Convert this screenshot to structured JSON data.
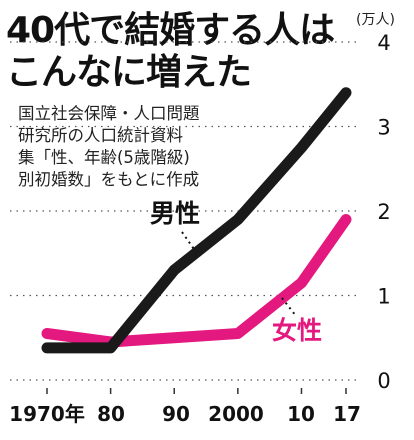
{
  "chart_data": {
    "type": "line",
    "title_lines": [
      "40代で結婚する人は",
      "こんなに増えた"
    ],
    "source_lines": [
      "国立社会保障・人口問題",
      "研究所の人口統計資料",
      "集「性、年齢(5歳階級)",
      "別初婚数」をもとに作成"
    ],
    "y_unit": "(万人)",
    "ylim": [
      0,
      4
    ],
    "yticks": [
      "0",
      "1",
      "2",
      "3",
      "4"
    ],
    "x": [
      1970,
      1980,
      1990,
      2000,
      2010,
      2017
    ],
    "xtick_labels": [
      "1970年",
      "80",
      "90",
      "2000",
      "10",
      "17"
    ],
    "grid": "dotted horizontal",
    "series": [
      {
        "name": "男性",
        "color": "#1a1a1a",
        "values": [
          0.38,
          0.38,
          1.3,
          1.9,
          2.75,
          3.4
        ]
      },
      {
        "name": "女性",
        "color": "#e4197f",
        "values": [
          0.55,
          0.45,
          0.5,
          0.55,
          1.15,
          1.9
        ]
      }
    ]
  }
}
